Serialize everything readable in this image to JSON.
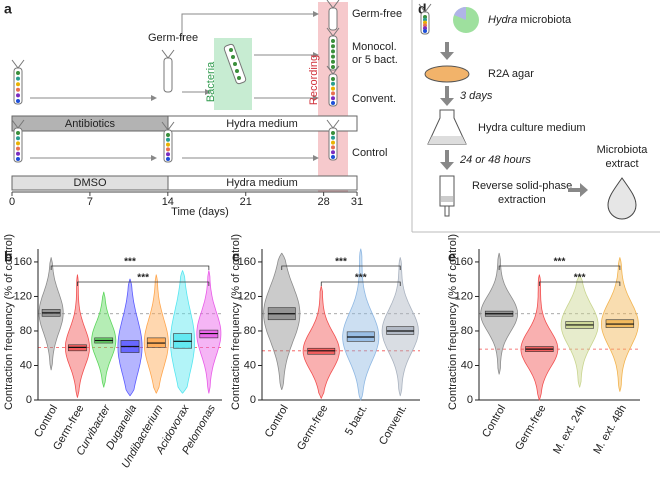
{
  "panel_a": {
    "label": "a",
    "germ_free_top": "Germ-free",
    "germ_free": "Germ-free",
    "bacteria": "Bacteria",
    "recording": "Recording",
    "monocol_1": "Monocol.",
    "monocol_2": "or 5 bact.",
    "convent": "Convent.",
    "antibiotics": "Antibiotics",
    "hydra_medium_1": "Hydra medium",
    "control": "Control",
    "dmso": "DMSO",
    "hydra_medium_2": "Hydra medium",
    "time_ticks": [
      0,
      7,
      14,
      21,
      28,
      31
    ],
    "time_label": "Time (days)"
  },
  "panel_d": {
    "label": "d",
    "microbiota_1": "Hydra",
    "microbiota_2": "microbiota",
    "agar": "R2A agar",
    "days": "3 days",
    "medium": "Hydra culture medium",
    "hours": "24 or 48 hours",
    "extraction_1": "Reverse solid-phase",
    "extraction_2": "extraction",
    "extract_1": "Microbiota",
    "extract_2": "extract"
  },
  "chart_data": [
    {
      "type": "violin",
      "label": "b",
      "y_label": "Contraction frequency (% of control)",
      "ylim": [
        0,
        175
      ],
      "yticks": [
        0,
        40,
        80,
        120,
        160
      ],
      "categories": [
        "Control",
        "Germ-free",
        "Curvibacter",
        "Duganella",
        "Undibacterium",
        "Acidovorax",
        "Pelomonas"
      ],
      "colors": [
        "#8c8c8c",
        "#f25050",
        "#5cd65c",
        "#5a5aff",
        "#ffa64d",
        "#55e6f0",
        "#e85ae8"
      ],
      "min": [
        35,
        3,
        15,
        5,
        8,
        8,
        8
      ],
      "q1": [
        97,
        57,
        66,
        55,
        61,
        60,
        72
      ],
      "median": [
        101,
        61,
        69,
        62,
        66,
        68,
        77
      ],
      "q3": [
        105,
        64,
        72,
        69,
        72,
        77,
        81
      ],
      "max": [
        165,
        145,
        125,
        140,
        145,
        150,
        150
      ],
      "reference_lines": [
        {
          "value": 100,
          "color": "#8c8c8c"
        },
        {
          "value": 61,
          "color": "#f25050"
        }
      ],
      "annotations": [
        "***",
        "***"
      ]
    },
    {
      "type": "violin",
      "label": "c",
      "y_label": "Contraction frequency (% of control)",
      "ylim": [
        0,
        175
      ],
      "yticks": [
        0,
        40,
        80,
        120,
        160
      ],
      "categories": [
        "Control",
        "Germ-free",
        "5 bact.",
        "Convent."
      ],
      "colors": [
        "#8c8c8c",
        "#f25050",
        "#8fb8e3",
        "#aab3c0"
      ],
      "min": [
        12,
        2,
        0,
        5
      ],
      "q1": [
        93,
        53,
        68,
        76
      ],
      "median": [
        100,
        57,
        73,
        80
      ],
      "q3": [
        107,
        60,
        79,
        85
      ],
      "max": [
        170,
        132,
        175,
        165
      ],
      "reference_lines": [
        {
          "value": 100,
          "color": "#8c8c8c"
        },
        {
          "value": 57,
          "color": "#f25050"
        }
      ],
      "annotations": [
        "***",
        "***"
      ]
    },
    {
      "type": "violin",
      "label": "e",
      "y_label": "Contraction frequency (% of control)",
      "ylim": [
        0,
        175
      ],
      "yticks": [
        0,
        40,
        80,
        120,
        160
      ],
      "categories": [
        "Control",
        "Germ-free",
        "M. ext. 24h",
        "M. ext. 48h"
      ],
      "colors": [
        "#8c8c8c",
        "#f25050",
        "#c9d58f",
        "#f2b450"
      ],
      "min": [
        30,
        0,
        15,
        10
      ],
      "q1": [
        97,
        56,
        83,
        84
      ],
      "median": [
        100,
        59,
        87,
        88
      ],
      "q3": [
        103,
        62,
        91,
        93
      ],
      "max": [
        170,
        145,
        145,
        165
      ],
      "reference_lines": [
        {
          "value": 100,
          "color": "#8c8c8c"
        },
        {
          "value": 59,
          "color": "#f25050"
        }
      ],
      "annotations": [
        "***",
        "***"
      ]
    }
  ]
}
